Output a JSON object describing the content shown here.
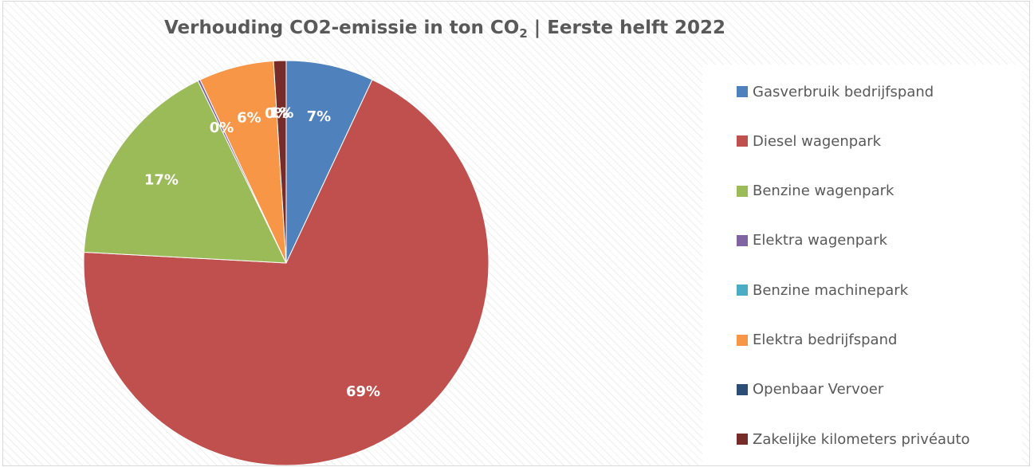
{
  "chart_data": {
    "type": "pie",
    "title": {
      "main": "Verhouding CO2-emissie in ton CO",
      "subscript": "2",
      "suffix": " | Eerste helft 2022"
    },
    "legend_position": "right",
    "slices": [
      {
        "name": "Gasverbruik bedrijfspand",
        "value": 7,
        "label": "7%",
        "color": "#4F81BD"
      },
      {
        "name": "Diesel wagenpark",
        "value": 69,
        "label": "69%",
        "color": "#C0504D"
      },
      {
        "name": "Benzine wagenpark",
        "value": 17,
        "label": "17%",
        "color": "#9BBB59"
      },
      {
        "name": "Elektra wagenpark",
        "value": 0.2,
        "label": "0%",
        "color": "#8064A2"
      },
      {
        "name": "Benzine machinepark",
        "value": 0,
        "label": "",
        "color": "#4BACC6"
      },
      {
        "name": "Elektra bedrijfspand",
        "value": 6,
        "label": "6%",
        "color": "#F79646"
      },
      {
        "name": "Openbaar Vervoer",
        "value": 0,
        "label": "0%",
        "color": "#2C4D75"
      },
      {
        "name": "Zakelijke kilometers privéauto",
        "value": 1,
        "label": "1%",
        "color": "#772C2A"
      }
    ]
  }
}
